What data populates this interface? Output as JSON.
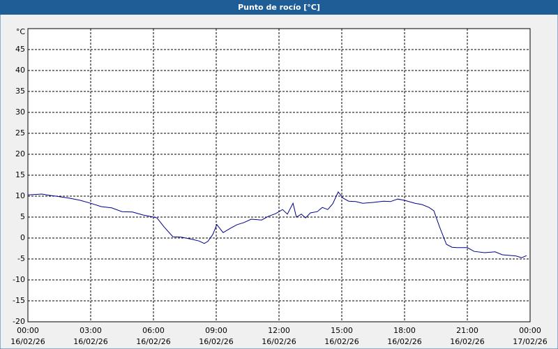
{
  "chart_data": {
    "type": "line",
    "title": "Punto de rocío [°C]",
    "y_unit": "°C",
    "x": [
      0,
      0.67,
      1.0,
      1.33,
      2.0,
      2.5,
      3,
      3.5,
      4,
      4.5,
      5,
      5.5,
      6,
      6.17,
      6.5,
      6.93,
      7.33,
      7.83,
      8.17,
      8.43,
      8.6,
      8.83,
      9.03,
      9.33,
      9.67,
      10,
      10.33,
      10.67,
      11.17,
      11.5,
      11.83,
      12.17,
      12.4,
      12.67,
      12.83,
      13.07,
      13.27,
      13.5,
      13.83,
      14.07,
      14.33,
      14.57,
      14.83,
      15.07,
      15.33,
      15.67,
      16,
      16.5,
      17,
      17.33,
      17.67,
      18,
      18.5,
      18.83,
      19.17,
      19.4,
      19.67,
      20,
      20.27,
      20.5,
      21,
      21.33,
      21.83,
      22.33,
      22.67,
      23.33,
      23.6,
      23.83
    ],
    "series": [
      {
        "name": "Punto de rocío",
        "color": "#00008c",
        "values": [
          10.3,
          10.5,
          10.2,
          10.0,
          9.5,
          9.0,
          8.3,
          7.5,
          7.2,
          6.3,
          6.2,
          5.5,
          5.0,
          4.8,
          2.7,
          0.3,
          0.2,
          -0.3,
          -0.7,
          -1.3,
          -0.8,
          0.8,
          3.2,
          1.3,
          2.3,
          3.2,
          3.7,
          4.5,
          4.3,
          5.2,
          5.8,
          6.8,
          5.7,
          8.3,
          5.0,
          5.7,
          4.8,
          6.0,
          6.3,
          7.3,
          6.8,
          8.2,
          11.0,
          9.5,
          8.8,
          8.7,
          8.3,
          8.5,
          8.8,
          8.7,
          9.3,
          9.0,
          8.3,
          8.0,
          7.3,
          6.5,
          2.7,
          -1.5,
          -2.2,
          -2.3,
          -2.3,
          -3.2,
          -3.5,
          -3.3,
          -4.0,
          -4.3,
          -4.7,
          -4.2
        ]
      }
    ],
    "xlim": [
      0,
      24
    ],
    "xticks": [
      {
        "value": 0,
        "label": "00:00",
        "date": "16/02/26"
      },
      {
        "value": 3,
        "label": "03:00",
        "date": "16/02/26"
      },
      {
        "value": 6,
        "label": "06:00",
        "date": "16/02/26"
      },
      {
        "value": 9,
        "label": "09:00",
        "date": "16/02/26"
      },
      {
        "value": 12,
        "label": "12:00",
        "date": "16/02/26"
      },
      {
        "value": 15,
        "label": "15:00",
        "date": "16/02/26"
      },
      {
        "value": 18,
        "label": "18:00",
        "date": "16/02/26"
      },
      {
        "value": 21,
        "label": "21:00",
        "date": "16/02/26"
      },
      {
        "value": 24,
        "label": "00:00",
        "date": "17/02/26"
      }
    ],
    "ylim": [
      -20,
      50
    ],
    "yticks": [
      -20,
      -15,
      -10,
      -5,
      0,
      5,
      10,
      15,
      20,
      25,
      30,
      35,
      40,
      45
    ],
    "grid": true
  }
}
